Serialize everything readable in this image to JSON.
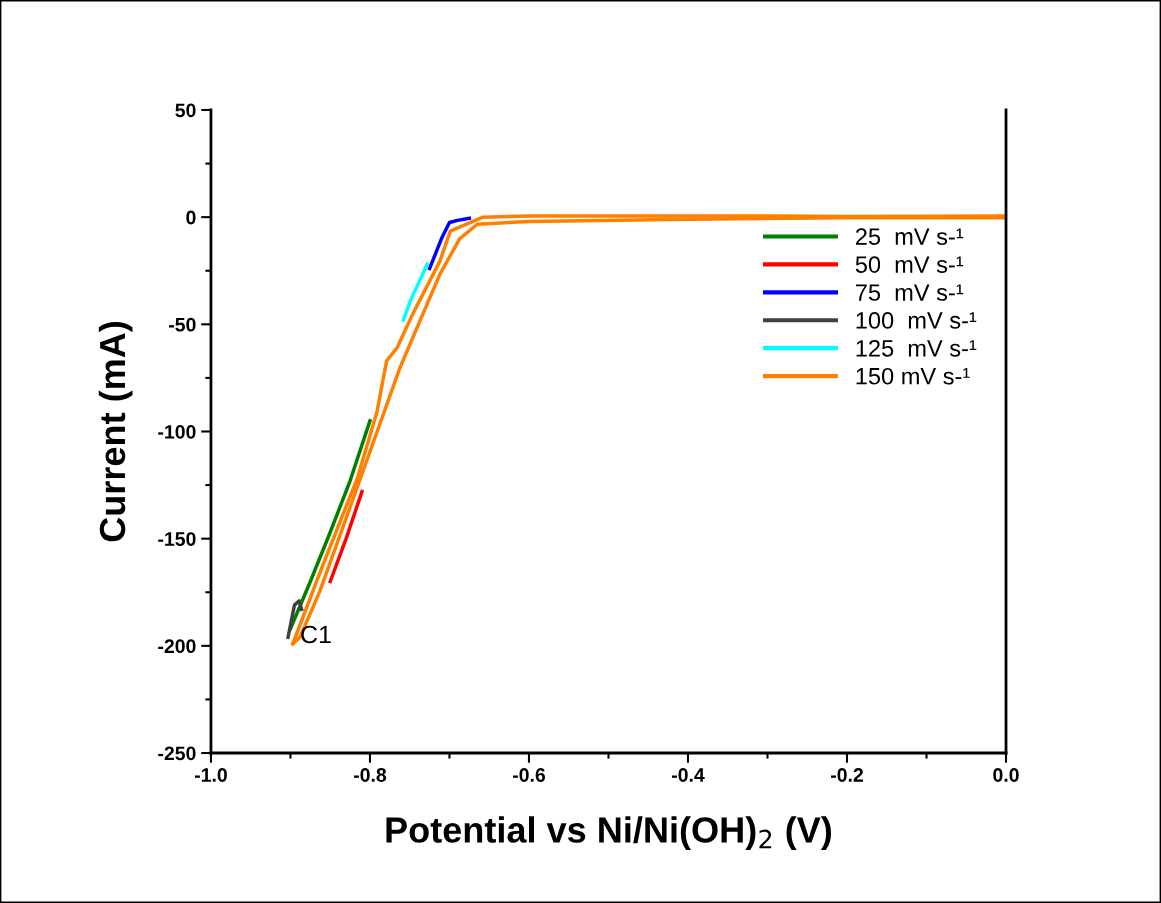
{
  "chart_data": {
    "type": "line",
    "xlabel": "Potential vs Ni/Ni(OH)$_{2}$ (V)",
    "ylabel": "Current (mA)",
    "xlim": [
      -1.0,
      0.0
    ],
    "ylim": [
      -250,
      50
    ],
    "xticks": [
      {
        "value": -1.0,
        "label": "-1.0"
      },
      {
        "value": -0.9,
        "label": null
      },
      {
        "value": -0.8,
        "label": "-0.8"
      },
      {
        "value": -0.7,
        "label": null
      },
      {
        "value": -0.6,
        "label": "-0.6"
      },
      {
        "value": -0.5,
        "label": null
      },
      {
        "value": -0.4,
        "label": "-0.4"
      },
      {
        "value": -0.3,
        "label": null
      },
      {
        "value": -0.2,
        "label": "-0.2"
      },
      {
        "value": -0.1,
        "label": null
      },
      {
        "value": 0.0,
        "label": "0.0"
      }
    ],
    "yticks": [
      -250,
      {
        "value": -225,
        "label": null
      },
      -200,
      {
        "value": -175,
        "label": null
      },
      -150,
      {
        "value": -125,
        "label": null
      },
      -100,
      {
        "value": -75,
        "label": null
      },
      -50,
      {
        "value": -25,
        "label": null
      },
      0,
      {
        "value": 25,
        "label": null
      },
      50
    ],
    "grid": false,
    "legend": "top right",
    "line_style": "solid",
    "marker": "none",
    "annotations": [
      "C1"
    ],
    "series": [
      {
        "name": "25  mV s-¹",
        "color": "#007f00",
        "x": [
          -0.9,
          -0.875,
          -0.85,
          -0.825,
          -0.8
        ],
        "values": [
          -192,
          -170,
          -147,
          -123,
          -95
        ]
      },
      {
        "name": "50  mV s-¹",
        "color": "#ff0000",
        "x": [
          -0.85,
          -0.83,
          -0.81
        ],
        "values": [
          -170,
          -150,
          -128
        ]
      },
      {
        "name": "75  mV s-¹",
        "color": "#0000ff",
        "x": [
          -0.725,
          -0.71,
          -0.7,
          -0.69,
          -0.675
        ],
        "values": [
          -24,
          -10,
          -2.5,
          -1.5,
          -0.5
        ]
      },
      {
        "name": "100  mV s-¹",
        "color": "#404040",
        "x": [
          -0.903,
          -0.895,
          -0.889,
          -0.886
        ],
        "values": [
          -196,
          -181,
          -179,
          -183
        ]
      },
      {
        "name": "125  mV s-¹",
        "color": "#00ffff",
        "x": [
          -0.758,
          -0.748,
          -0.738,
          -0.728
        ],
        "values": [
          -48,
          -38,
          -30,
          -22
        ]
      },
      {
        "name": "150 mV s-¹",
        "color": "#ff8000",
        "x": [
          -0.897,
          -0.86,
          -0.816,
          -0.791,
          -0.779,
          -0.766,
          -0.746,
          -0.712,
          -0.699,
          -0.658,
          -0.6,
          -0.5,
          -0.4,
          -0.3,
          -0.2,
          0
        ],
        "values": [
          -199,
          -163,
          -122,
          -90.5,
          -67,
          -61,
          -45,
          -20.5,
          -6.5,
          0,
          0.5,
          0.5,
          0.5,
          0.5,
          0.3,
          0.5
        ]
      },
      {
        "color": "#ff8000",
        "x": [
          0,
          -0.2,
          -0.4,
          -0.6,
          -0.665,
          -0.687,
          -0.712,
          -0.762,
          -0.816,
          -0.863,
          -0.888,
          -0.897
        ],
        "values": [
          -0.3,
          -0.3,
          -1,
          -2,
          -3.3,
          -10,
          -26.6,
          -70,
          -126,
          -174.5,
          -196,
          -199
        ]
      }
    ]
  }
}
